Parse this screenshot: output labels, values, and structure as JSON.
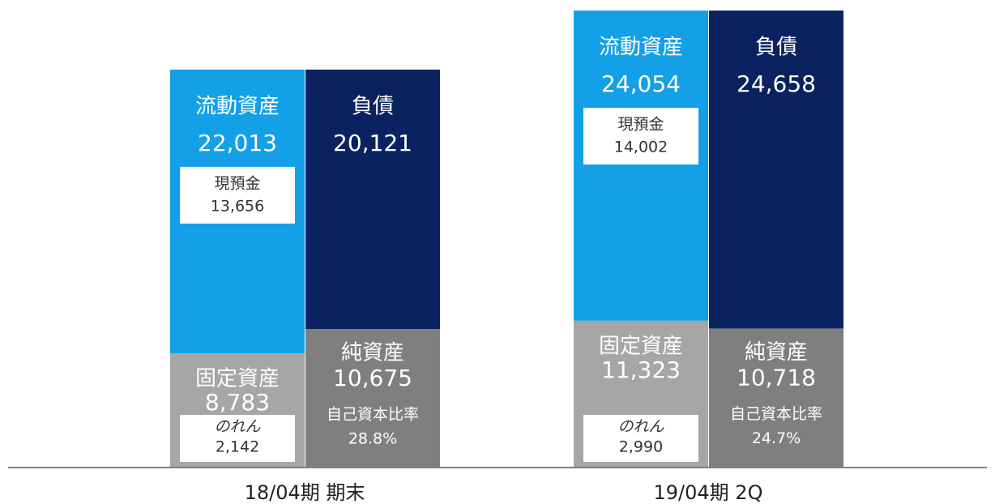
{
  "chart_data": {
    "type": "bar",
    "categories": [
      "18/04期 期末",
      "19/04期 2Q"
    ],
    "series": [
      {
        "name": "固定資産",
        "stack": "assets",
        "color": "#a6a6a6",
        "values": [
          8783,
          11323
        ],
        "value_labels": [
          "8,783",
          "11,323"
        ]
      },
      {
        "name": "流動資産",
        "stack": "assets",
        "color": "#14a0e6",
        "values": [
          22013,
          24054
        ],
        "value_labels": [
          "22,013",
          "24,054"
        ]
      },
      {
        "name": "純資産",
        "stack": "liabilities",
        "color": "#7f7f7f",
        "values": [
          10675,
          10718
        ],
        "value_labels": [
          "10,675",
          "10,718"
        ]
      },
      {
        "name": "負債",
        "stack": "liabilities",
        "color": "#0b2260",
        "values": [
          20121,
          24658
        ],
        "value_labels": [
          "20,121",
          "24,658"
        ]
      }
    ],
    "cash": {
      "name": "現預金",
      "values": [
        13656,
        14002
      ],
      "value_labels": [
        "13,656",
        "14,002"
      ]
    },
    "goodwill": {
      "name": "のれん",
      "values": [
        2142,
        2990
      ],
      "value_labels": [
        "2,142",
        "2,990"
      ]
    },
    "equity_ratio": {
      "name": "自己資本比率",
      "values": [
        28.8,
        24.7
      ],
      "value_labels": [
        "28.8%",
        "24.7%"
      ]
    }
  }
}
